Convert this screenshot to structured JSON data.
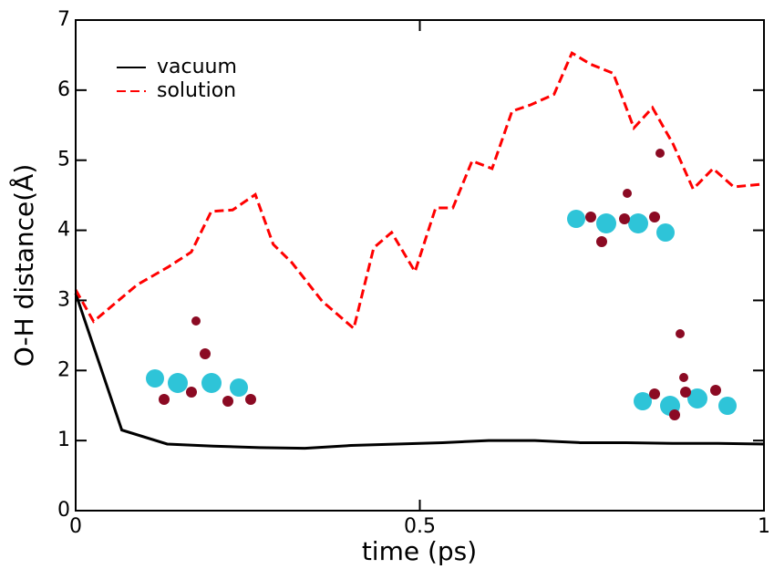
{
  "chart_data": {
    "type": "line",
    "xlabel": "time (ps)",
    "ylabel": "O-H distance(Å)",
    "xlim": [
      0,
      1
    ],
    "ylim": [
      0,
      7
    ],
    "xticks": [
      0,
      0.5,
      1
    ],
    "yticks": [
      0,
      1,
      2,
      3,
      4,
      5,
      6,
      7
    ],
    "legend": "upper left",
    "series": [
      {
        "name": "vacuum",
        "color": "#000000",
        "dash": "solid",
        "x": [
          0,
          0.067,
          0.133,
          0.2,
          0.267,
          0.333,
          0.4,
          0.467,
          0.533,
          0.6,
          0.667,
          0.733,
          0.8,
          0.867,
          0.933,
          1
        ],
        "values": [
          3.1,
          1.15,
          0.95,
          0.92,
          0.9,
          0.89,
          0.93,
          0.95,
          0.97,
          1.0,
          1.0,
          0.97,
          0.97,
          0.96,
          0.96,
          0.95
        ]
      },
      {
        "name": "solution",
        "color": "#ff0000",
        "dash": "dashed",
        "x": [
          0,
          0.026,
          0.089,
          0.135,
          0.168,
          0.197,
          0.228,
          0.261,
          0.287,
          0.314,
          0.358,
          0.404,
          0.433,
          0.459,
          0.493,
          0.523,
          0.548,
          0.576,
          0.605,
          0.634,
          0.661,
          0.695,
          0.721,
          0.748,
          0.781,
          0.811,
          0.838,
          0.868,
          0.897,
          0.926,
          0.956,
          1
        ],
        "values": [
          3.15,
          2.7,
          3.22,
          3.48,
          3.69,
          4.27,
          4.29,
          4.51,
          3.8,
          3.54,
          2.99,
          2.6,
          3.75,
          3.97,
          3.41,
          4.32,
          4.32,
          4.99,
          4.88,
          5.7,
          5.79,
          5.94,
          6.53,
          6.37,
          6.24,
          5.46,
          5.75,
          5.23,
          4.59,
          4.88,
          4.62,
          4.66
        ]
      }
    ]
  }
}
